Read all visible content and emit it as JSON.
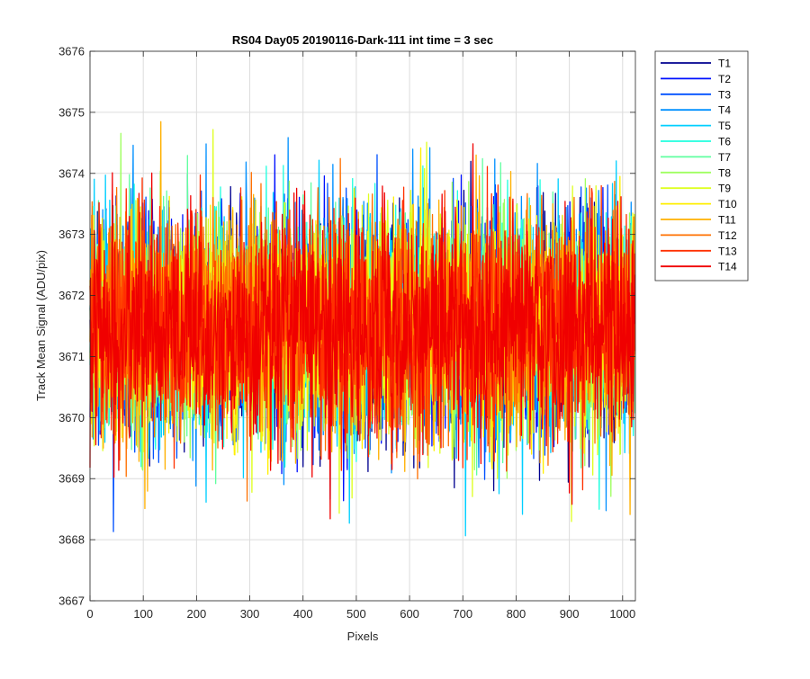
{
  "chart_data": {
    "type": "line",
    "title": "RS04 Day05 20190116-Dark-111 int time = 3 sec",
    "xlabel": "Pixels",
    "ylabel": "Track Mean Signal (ADU/pix)",
    "xlim": [
      0,
      1024
    ],
    "ylim": [
      3667,
      3676
    ],
    "xticks": [
      0,
      100,
      200,
      300,
      400,
      500,
      600,
      700,
      800,
      900,
      1000
    ],
    "yticks": [
      3667,
      3668,
      3669,
      3670,
      3671,
      3672,
      3673,
      3674,
      3675,
      3676
    ],
    "grid": true,
    "legend_position": "outside-top-right",
    "noise_model": {
      "num_pixels": 1024,
      "mean": 3671.5,
      "std": 0.9,
      "min_observed": 3667.75,
      "max_observed": 3675.7
    },
    "series": [
      {
        "name": "T1",
        "color": "#00008f"
      },
      {
        "name": "T2",
        "color": "#0010ff"
      },
      {
        "name": "T3",
        "color": "#0050ff"
      },
      {
        "name": "T4",
        "color": "#0090ff"
      },
      {
        "name": "T5",
        "color": "#00cfff"
      },
      {
        "name": "T6",
        "color": "#20ffdf"
      },
      {
        "name": "T7",
        "color": "#60ffa0"
      },
      {
        "name": "T8",
        "color": "#9fff60"
      },
      {
        "name": "T9",
        "color": "#dfff20"
      },
      {
        "name": "T10",
        "color": "#ffef00"
      },
      {
        "name": "T11",
        "color": "#ffb000"
      },
      {
        "name": "T12",
        "color": "#ff7000"
      },
      {
        "name": "T13",
        "color": "#ff3000"
      },
      {
        "name": "T14",
        "color": "#f00000"
      }
    ]
  }
}
